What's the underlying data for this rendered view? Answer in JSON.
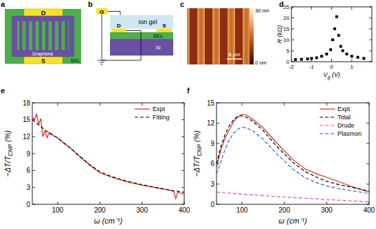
{
  "diagrams": {
    "a": {
      "label": "a",
      "drain": "D",
      "source": "S",
      "graphene": "Graphene",
      "substrate": "SiO₂"
    },
    "b": {
      "label": "b",
      "gate": "G",
      "ion_gel": "Ion gel",
      "drain": "D",
      "source": "S",
      "oxide": "SiO₂",
      "silicon": "Si"
    },
    "c": {
      "label": "c",
      "colorbar_top": "30 nm",
      "colorbar_bottom": "0 nm",
      "scale_bar": "8 µm"
    }
  },
  "chart_data": [
    {
      "type": "scatter",
      "title": "d",
      "xlabel": [
        "V",
        "g",
        " (V)"
      ],
      "ylabel": "R (kΩ)",
      "x": [
        -1.8,
        -1.5,
        -1.2,
        -1.0,
        -0.75,
        -0.5,
        -0.25,
        -0.05,
        0.05,
        0.15,
        0.25,
        0.35,
        0.45,
        0.55,
        0.75,
        1.0,
        1.3,
        1.6
      ],
      "values": [
        1.0,
        1.1,
        1.3,
        1.5,
        1.8,
        2.5,
        3.5,
        5.5,
        10,
        15,
        20.5,
        12,
        7,
        5,
        3.5,
        2.5,
        2.0,
        1.5
      ],
      "color": "#000000",
      "marker": "square",
      "xlim": [
        -2,
        2
      ],
      "xticks": [
        -2,
        -1,
        0,
        1
      ],
      "ylim": [
        0,
        25
      ],
      "yticks": [
        0,
        5,
        10,
        15,
        20,
        25
      ]
    },
    {
      "type": "line",
      "title": "e",
      "xlabel": "ω (cm⁻¹)",
      "ylabel": [
        "−ΔT/T",
        "CNP",
        " (%)"
      ],
      "x": [
        40,
        45,
        50,
        55,
        60,
        65,
        70,
        75,
        80,
        90,
        100,
        115,
        130,
        150,
        175,
        200,
        225,
        250,
        275,
        300,
        330,
        360,
        375,
        380,
        385,
        390,
        400
      ],
      "series": [
        {
          "name": "Expt",
          "color": "#e3231b",
          "line_style": "solid",
          "values": [
            15.5,
            15.0,
            16.0,
            14.2,
            15.2,
            12.0,
            13.0,
            11.8,
            12.8,
            12.2,
            11.8,
            10.8,
            10.0,
            8.6,
            7.0,
            5.6,
            4.9,
            4.3,
            3.8,
            3.4,
            3.0,
            2.6,
            2.3,
            1.0,
            2.2,
            2.0,
            1.8
          ]
        },
        {
          "name": "Fitting",
          "color": "#000000",
          "line_style": "dashed",
          "values": [
            15.0,
            14.7,
            14.4,
            14.1,
            13.8,
            13.5,
            13.2,
            12.9,
            12.6,
            12.2,
            11.8,
            10.9,
            10.0,
            8.7,
            7.1,
            5.8,
            5.0,
            4.4,
            3.9,
            3.5,
            3.0,
            2.6,
            2.4,
            2.4,
            2.3,
            2.3,
            2.1
          ]
        }
      ],
      "xlim": [
        40,
        400
      ],
      "xticks": [
        100,
        200,
        300,
        400
      ],
      "ylim": [
        0,
        18
      ],
      "yticks": [
        0,
        3,
        6,
        9,
        12,
        15,
        18
      ],
      "legend": "upper right"
    },
    {
      "type": "line",
      "title": "f",
      "xlabel": "ω (cm⁻¹)",
      "ylabel": [
        "−ΔT/T",
        "CNP",
        " (%)"
      ],
      "x": [
        40,
        50,
        60,
        70,
        80,
        90,
        100,
        110,
        125,
        150,
        180,
        220,
        250,
        280,
        300,
        330,
        360,
        390,
        400
      ],
      "series": [
        {
          "name": "Expt",
          "color": "#e3231b",
          "line_style": "solid",
          "values": [
            5.5,
            8.0,
            9.8,
            11.0,
            12.2,
            12.9,
            13.3,
            13.2,
            12.6,
            11.3,
            9.2,
            6.6,
            5.2,
            4.4,
            4.0,
            3.3,
            2.6,
            2.0,
            1.8
          ]
        },
        {
          "name": "Total",
          "color": "#000000",
          "line_style": "dashed",
          "values": [
            6.0,
            8.5,
            10.3,
            11.6,
            12.5,
            13.0,
            13.1,
            12.9,
            12.3,
            10.9,
            8.7,
            6.2,
            4.8,
            3.9,
            3.4,
            2.9,
            2.5,
            2.1,
            2.0
          ]
        },
        {
          "name": "Drude",
          "color": "#d04cc4",
          "line_style": "dashed",
          "values": [
            1.8,
            1.75,
            1.7,
            1.65,
            1.6,
            1.55,
            1.5,
            1.45,
            1.4,
            1.3,
            1.15,
            1.0,
            0.9,
            0.8,
            0.7,
            0.6,
            0.5,
            0.4,
            0.35
          ]
        },
        {
          "name": "Plasmon",
          "color": "#2a5bd7",
          "line_style": "dashed",
          "values": [
            4.5,
            6.3,
            8.1,
            9.5,
            10.5,
            11.1,
            11.4,
            11.3,
            10.9,
            9.6,
            7.6,
            5.2,
            3.9,
            3.1,
            2.7,
            2.3,
            2.0,
            1.7,
            1.65
          ]
        }
      ],
      "xlim": [
        40,
        400
      ],
      "xticks": [
        100,
        200,
        300,
        400
      ],
      "ylim": [
        0,
        15
      ],
      "yticks": [
        0,
        3,
        6,
        9,
        12,
        15
      ],
      "legend": "upper right"
    }
  ]
}
